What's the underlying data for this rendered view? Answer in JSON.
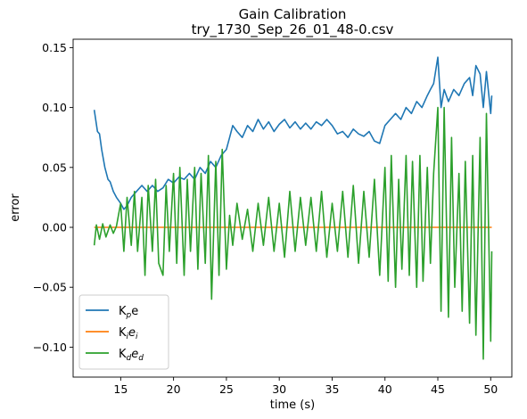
{
  "chart_data": {
    "type": "line",
    "title": "Gain Calibration",
    "subtitle": "try_1730_Sep_26_01_48-0.csv",
    "xlabel": "time (s)",
    "ylabel": "error",
    "xlim": [
      10.5,
      52.0
    ],
    "ylim": [
      -0.125,
      0.157
    ],
    "xticks": [
      15,
      20,
      25,
      30,
      35,
      40,
      45,
      50
    ],
    "xtick_labels": [
      "15",
      "20",
      "25",
      "30",
      "35",
      "40",
      "45",
      "50"
    ],
    "yticks": [
      0.15,
      0.1,
      0.05,
      0.0,
      -0.05,
      -0.1
    ],
    "ytick_labels": [
      "0.15",
      "0.10",
      "0.05",
      "0.00",
      "−0.05",
      "−0.10"
    ],
    "grid": false,
    "legend_position": "lower-left",
    "series": [
      {
        "name": "K_p e",
        "legend_main": "K",
        "legend_sub": "p",
        "legend_tail": "e",
        "legend_tail_sub": "",
        "color": "#1f77b4",
        "x": [
          12.5,
          12.8,
          13.0,
          13.2,
          13.5,
          13.8,
          14.0,
          14.3,
          14.6,
          15.0,
          15.3,
          15.6,
          16.0,
          16.5,
          17.0,
          17.5,
          18.0,
          18.5,
          19.0,
          19.5,
          20.0,
          20.5,
          21.0,
          21.5,
          22.0,
          22.5,
          23.0,
          23.5,
          24.0,
          24.5,
          25.0,
          25.3,
          25.6,
          26.0,
          26.5,
          27.0,
          27.5,
          28.0,
          28.5,
          29.0,
          29.5,
          30.0,
          30.5,
          31.0,
          31.5,
          32.0,
          32.5,
          33.0,
          33.5,
          34.0,
          34.5,
          35.0,
          35.5,
          36.0,
          36.5,
          37.0,
          37.5,
          38.0,
          38.5,
          39.0,
          39.5,
          40.0,
          40.5,
          41.0,
          41.5,
          42.0,
          42.5,
          43.0,
          43.5,
          44.0,
          44.3,
          44.6,
          45.0,
          45.3,
          45.6,
          46.0,
          46.5,
          47.0,
          47.5,
          48.0,
          48.3,
          48.6,
          49.0,
          49.3,
          49.6,
          50.0,
          50.1
        ],
        "y": [
          0.098,
          0.08,
          0.078,
          0.065,
          0.05,
          0.04,
          0.038,
          0.03,
          0.025,
          0.02,
          0.015,
          0.018,
          0.025,
          0.03,
          0.035,
          0.03,
          0.035,
          0.03,
          0.033,
          0.04,
          0.037,
          0.042,
          0.04,
          0.045,
          0.04,
          0.05,
          0.045,
          0.055,
          0.05,
          0.06,
          0.065,
          0.075,
          0.085,
          0.08,
          0.075,
          0.085,
          0.08,
          0.09,
          0.082,
          0.088,
          0.08,
          0.086,
          0.09,
          0.083,
          0.088,
          0.082,
          0.087,
          0.082,
          0.088,
          0.085,
          0.09,
          0.085,
          0.078,
          0.08,
          0.075,
          0.082,
          0.078,
          0.076,
          0.08,
          0.072,
          0.07,
          0.085,
          0.09,
          0.095,
          0.09,
          0.1,
          0.095,
          0.105,
          0.1,
          0.11,
          0.115,
          0.12,
          0.142,
          0.1,
          0.115,
          0.105,
          0.115,
          0.11,
          0.12,
          0.125,
          0.11,
          0.135,
          0.128,
          0.1,
          0.13,
          0.095,
          0.11
        ]
      },
      {
        "name": "K_i e_i",
        "legend_main": "K",
        "legend_sub": "i",
        "legend_tail": "e",
        "legend_tail_sub": "i",
        "color": "#ff7f0e",
        "x": [
          12.5,
          50.1
        ],
        "y": [
          0.0,
          0.0
        ]
      },
      {
        "name": "K_d e_d",
        "legend_main": "K",
        "legend_sub": "d",
        "legend_tail": "e",
        "legend_tail_sub": "d",
        "color": "#2ca02c",
        "x": [
          12.5,
          12.7,
          13.0,
          13.3,
          13.6,
          14.0,
          14.3,
          14.6,
          15.0,
          15.3,
          15.6,
          16.0,
          16.3,
          16.6,
          17.0,
          17.3,
          17.6,
          18.0,
          18.3,
          18.6,
          19.0,
          19.3,
          19.6,
          20.0,
          20.3,
          20.6,
          21.0,
          21.3,
          21.6,
          22.0,
          22.3,
          22.6,
          23.0,
          23.3,
          23.6,
          24.0,
          24.3,
          24.6,
          25.0,
          25.3,
          25.6,
          26.0,
          26.5,
          27.0,
          27.5,
          28.0,
          28.5,
          29.0,
          29.5,
          30.0,
          30.5,
          31.0,
          31.5,
          32.0,
          32.5,
          33.0,
          33.5,
          34.0,
          34.5,
          35.0,
          35.5,
          36.0,
          36.5,
          37.0,
          37.5,
          38.0,
          38.5,
          39.0,
          39.5,
          40.0,
          40.3,
          40.6,
          41.0,
          41.3,
          41.6,
          42.0,
          42.3,
          42.6,
          43.0,
          43.3,
          43.6,
          44.0,
          44.3,
          44.6,
          45.0,
          45.3,
          45.6,
          46.0,
          46.3,
          46.6,
          47.0,
          47.3,
          47.6,
          48.0,
          48.3,
          48.6,
          49.0,
          49.3,
          49.6,
          50.0,
          50.1
        ],
        "y": [
          -0.015,
          0.002,
          -0.01,
          0.003,
          -0.008,
          0.002,
          -0.005,
          0.001,
          0.02,
          -0.02,
          0.025,
          -0.015,
          0.03,
          -0.02,
          0.025,
          -0.04,
          0.035,
          -0.02,
          0.04,
          -0.03,
          -0.04,
          0.035,
          -0.02,
          0.045,
          -0.03,
          0.05,
          -0.04,
          0.04,
          -0.02,
          0.05,
          -0.035,
          0.045,
          -0.03,
          0.06,
          -0.06,
          0.055,
          -0.04,
          0.065,
          -0.035,
          0.01,
          -0.015,
          0.02,
          -0.01,
          0.015,
          -0.02,
          0.02,
          -0.015,
          0.025,
          -0.02,
          0.02,
          -0.025,
          0.03,
          -0.02,
          0.025,
          -0.015,
          0.025,
          -0.02,
          0.03,
          -0.025,
          0.02,
          -0.02,
          0.03,
          -0.025,
          0.035,
          -0.03,
          0.03,
          -0.025,
          0.04,
          -0.04,
          0.05,
          -0.045,
          0.06,
          -0.05,
          0.04,
          -0.035,
          0.06,
          -0.04,
          0.055,
          -0.05,
          0.06,
          -0.045,
          0.05,
          -0.03,
          0.045,
          0.1,
          -0.07,
          0.1,
          -0.075,
          0.075,
          -0.05,
          0.045,
          -0.07,
          0.055,
          -0.08,
          0.06,
          -0.09,
          0.075,
          -0.11,
          0.095,
          -0.095,
          -0.02
        ]
      }
    ]
  }
}
